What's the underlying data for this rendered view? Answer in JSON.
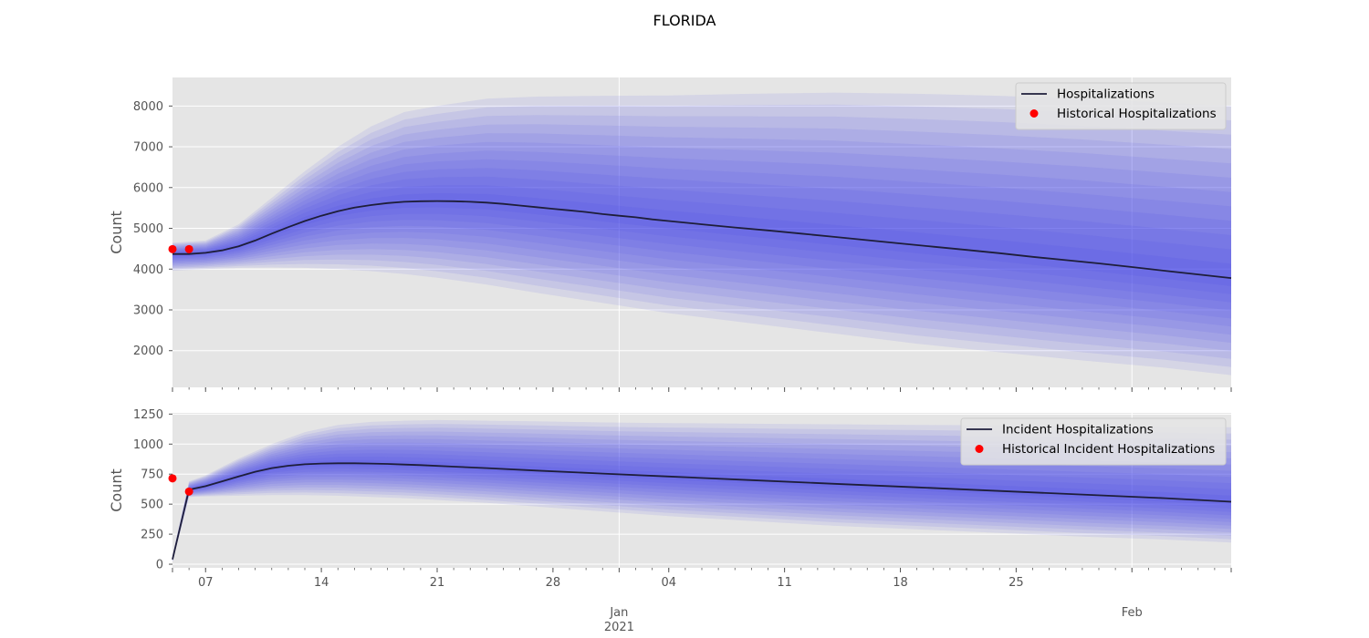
{
  "figure": {
    "title": "FLORIDA"
  },
  "colors": {
    "panel_bg": "#e5e5e5",
    "band": "#3a3aee",
    "median": "#1e1e3a",
    "historical": "#ff0000",
    "grid": "#ffffff"
  },
  "x_axis": {
    "start": "2020-12-05",
    "end": "2021-02-07",
    "major_ticks": [
      {
        "date": "2020-12-07",
        "label": "07"
      },
      {
        "date": "2020-12-14",
        "label": "14"
      },
      {
        "date": "2020-12-21",
        "label": "21"
      },
      {
        "date": "2020-12-28",
        "label": "28"
      },
      {
        "date": "2021-01-04",
        "label": "04"
      },
      {
        "date": "2021-01-11",
        "label": "11"
      },
      {
        "date": "2021-01-18",
        "label": "18"
      },
      {
        "date": "2021-01-25",
        "label": "25"
      }
    ],
    "month_ticks": [
      {
        "date": "2021-01-01",
        "label": "Jan",
        "sublabel": "2021"
      },
      {
        "date": "2021-02-01",
        "label": "Feb",
        "sublabel": ""
      }
    ]
  },
  "chart_data": [
    {
      "type": "area",
      "ylabel": "Count",
      "ylim": [
        1100,
        8700
      ],
      "yticks": [
        "2000",
        "3000",
        "4000",
        "5000",
        "6000",
        "7000",
        "8000"
      ],
      "grid": true,
      "legend": {
        "placement": "top-right",
        "entries": [
          {
            "label": "Hospitalizations",
            "kind": "line"
          },
          {
            "label": "Historical Hospitalizations",
            "kind": "dot"
          }
        ]
      },
      "median": {
        "name": "Hospitalizations",
        "x": [
          "2020-12-05",
          "2020-12-06",
          "2020-12-07",
          "2020-12-08",
          "2020-12-09",
          "2020-12-10",
          "2020-12-11",
          "2020-12-12",
          "2020-12-13",
          "2020-12-14",
          "2020-12-15",
          "2020-12-16",
          "2020-12-17",
          "2020-12-18",
          "2020-12-19",
          "2020-12-20",
          "2020-12-21",
          "2020-12-22",
          "2020-12-23",
          "2020-12-24",
          "2020-12-25",
          "2020-12-26",
          "2020-12-27",
          "2020-12-28",
          "2020-12-29",
          "2020-12-30",
          "2020-12-31",
          "2021-01-01",
          "2021-01-02",
          "2021-01-03",
          "2021-01-04",
          "2021-01-06",
          "2021-01-08",
          "2021-01-10",
          "2021-01-12",
          "2021-01-14",
          "2021-01-16",
          "2021-01-18",
          "2021-01-20",
          "2021-01-22",
          "2021-01-24",
          "2021-01-26",
          "2021-01-28",
          "2021-01-30",
          "2021-02-01",
          "2021-02-03",
          "2021-02-05",
          "2021-02-07"
        ],
        "y": [
          4370,
          4370,
          4400,
          4460,
          4560,
          4700,
          4870,
          5030,
          5180,
          5310,
          5420,
          5510,
          5570,
          5620,
          5650,
          5665,
          5670,
          5665,
          5650,
          5630,
          5600,
          5560,
          5520,
          5480,
          5440,
          5400,
          5350,
          5310,
          5270,
          5220,
          5180,
          5100,
          5020,
          4950,
          4870,
          4790,
          4710,
          4630,
          4550,
          4470,
          4390,
          4300,
          4220,
          4140,
          4050,
          3960,
          3870,
          3780
        ]
      },
      "bands": {
        "x": [
          "2020-12-05",
          "2020-12-07",
          "2020-12-09",
          "2020-12-11",
          "2020-12-13",
          "2020-12-15",
          "2020-12-17",
          "2020-12-19",
          "2020-12-21",
          "2020-12-24",
          "2020-12-27",
          "2020-12-31",
          "2021-01-04",
          "2021-01-09",
          "2021-01-14",
          "2021-01-19",
          "2021-01-24",
          "2021-01-29",
          "2021-02-03",
          "2021-02-07"
        ],
        "outer_lower": [
          3960,
          4000,
          4030,
          4040,
          4030,
          4000,
          3950,
          3880,
          3790,
          3620,
          3420,
          3170,
          2920,
          2670,
          2420,
          2170,
          1960,
          1760,
          1580,
          1400
        ],
        "outer_upper": [
          4650,
          4700,
          5100,
          5750,
          6400,
          7000,
          7500,
          7850,
          8000,
          8180,
          8230,
          8250,
          8260,
          8300,
          8330,
          8300,
          8250,
          8180,
          8080,
          8000
        ]
      },
      "historical": {
        "name": "Historical Hospitalizations",
        "x": [
          "2020-12-05",
          "2020-12-06"
        ],
        "y": [
          4490,
          4490
        ]
      }
    },
    {
      "type": "area",
      "ylabel": "Count",
      "ylim": [
        -30,
        1260
      ],
      "yticks": [
        "0",
        "250",
        "500",
        "750",
        "1000",
        "1250"
      ],
      "grid": true,
      "legend": {
        "placement": "top-right",
        "entries": [
          {
            "label": "Incident Hospitalizations",
            "kind": "line"
          },
          {
            "label": "Historical Incident Hospitalizations",
            "kind": "dot"
          }
        ]
      },
      "median": {
        "name": "Incident Hospitalizations",
        "x": [
          "2020-12-05",
          "2020-12-06",
          "2020-12-07",
          "2020-12-08",
          "2020-12-09",
          "2020-12-10",
          "2020-12-11",
          "2020-12-12",
          "2020-12-13",
          "2020-12-14",
          "2020-12-15",
          "2020-12-16",
          "2020-12-17",
          "2020-12-18",
          "2020-12-19",
          "2020-12-20",
          "2020-12-22",
          "2020-12-24",
          "2020-12-27",
          "2020-12-31",
          "2021-01-04",
          "2021-01-09",
          "2021-01-14",
          "2021-01-19",
          "2021-01-24",
          "2021-01-29",
          "2021-02-03",
          "2021-02-07"
        ],
        "y": [
          40,
          620,
          650,
          690,
          730,
          770,
          800,
          820,
          832,
          838,
          840,
          840,
          838,
          835,
          830,
          825,
          812,
          800,
          780,
          755,
          730,
          700,
          670,
          640,
          610,
          580,
          550,
          520
        ]
      },
      "bands": {
        "x": [
          "2020-12-05",
          "2020-12-06",
          "2020-12-07",
          "2020-12-09",
          "2020-12-11",
          "2020-12-13",
          "2020-12-15",
          "2020-12-17",
          "2020-12-19",
          "2020-12-21",
          "2020-12-24",
          "2020-12-27",
          "2020-12-31",
          "2021-01-04",
          "2021-01-09",
          "2021-01-14",
          "2021-01-19",
          "2021-01-24",
          "2021-01-29",
          "2021-02-03",
          "2021-02-07"
        ],
        "outer_lower": [
          20,
          560,
          565,
          570,
          575,
          575,
          570,
          560,
          550,
          535,
          510,
          480,
          440,
          400,
          360,
          320,
          290,
          260,
          230,
          205,
          180
        ],
        "outer_upper": [
          70,
          690,
          740,
          880,
          1000,
          1100,
          1160,
          1185,
          1195,
          1200,
          1195,
          1190,
          1180,
          1175,
          1170,
          1165,
          1160,
          1155,
          1150,
          1145,
          1140
        ]
      },
      "historical": {
        "name": "Historical Incident Hospitalizations",
        "x": [
          "2020-12-05",
          "2020-12-06"
        ],
        "y": [
          715,
          605
        ]
      }
    }
  ]
}
